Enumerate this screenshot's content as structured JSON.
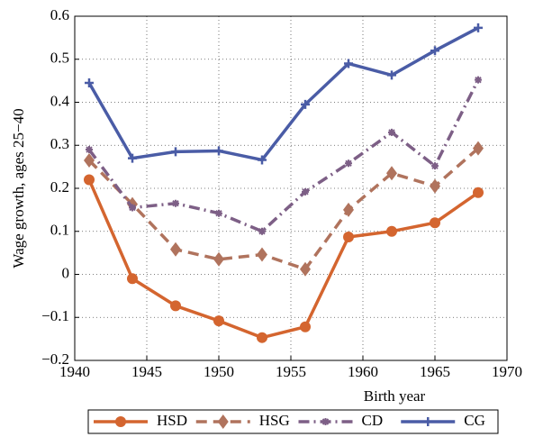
{
  "chart_data": {
    "type": "line",
    "x_label": "Birth year",
    "y_label": "Wage growth, ages 25−40",
    "x": [
      1941,
      1944,
      1947,
      1950,
      1953,
      1956,
      1959,
      1962,
      1965,
      1968
    ],
    "series": [
      {
        "name": "HSD",
        "color": "#d4652f",
        "dash": "solid",
        "marker": "circle",
        "values": [
          0.22,
          -0.01,
          -0.073,
          -0.108,
          -0.147,
          -0.122,
          0.087,
          0.1,
          0.12,
          0.19
        ]
      },
      {
        "name": "HSG",
        "color": "#b0735d",
        "dash": "dashed",
        "marker": "diamond",
        "values": [
          0.265,
          0.163,
          0.058,
          0.035,
          0.046,
          0.012,
          0.15,
          0.235,
          0.205,
          0.293
        ]
      },
      {
        "name": "CD",
        "color": "#7d5f86",
        "dash": "dashdot",
        "marker": "star",
        "values": [
          0.29,
          0.155,
          0.165,
          0.142,
          0.1,
          0.192,
          0.258,
          0.33,
          0.252,
          0.452
        ]
      },
      {
        "name": "CG",
        "color": "#4a5ca6",
        "dash": "solid",
        "marker": "plus",
        "values": [
          0.445,
          0.27,
          0.285,
          0.287,
          0.266,
          0.395,
          0.49,
          0.463,
          0.52,
          0.573
        ]
      }
    ],
    "xlim": [
      1940,
      1970
    ],
    "xticks": [
      1940,
      1945,
      1950,
      1955,
      1960,
      1965,
      1970
    ],
    "ylim": [
      -0.2,
      0.6
    ],
    "yticks": [
      {
        "value": -0.2,
        "label": "−0.2"
      },
      {
        "value": -0.1,
        "label": "−0.1"
      },
      0,
      0.1,
      0.2,
      0.3,
      0.4,
      0.5,
      0.6
    ],
    "grid": true,
    "legend": "bottom"
  }
}
